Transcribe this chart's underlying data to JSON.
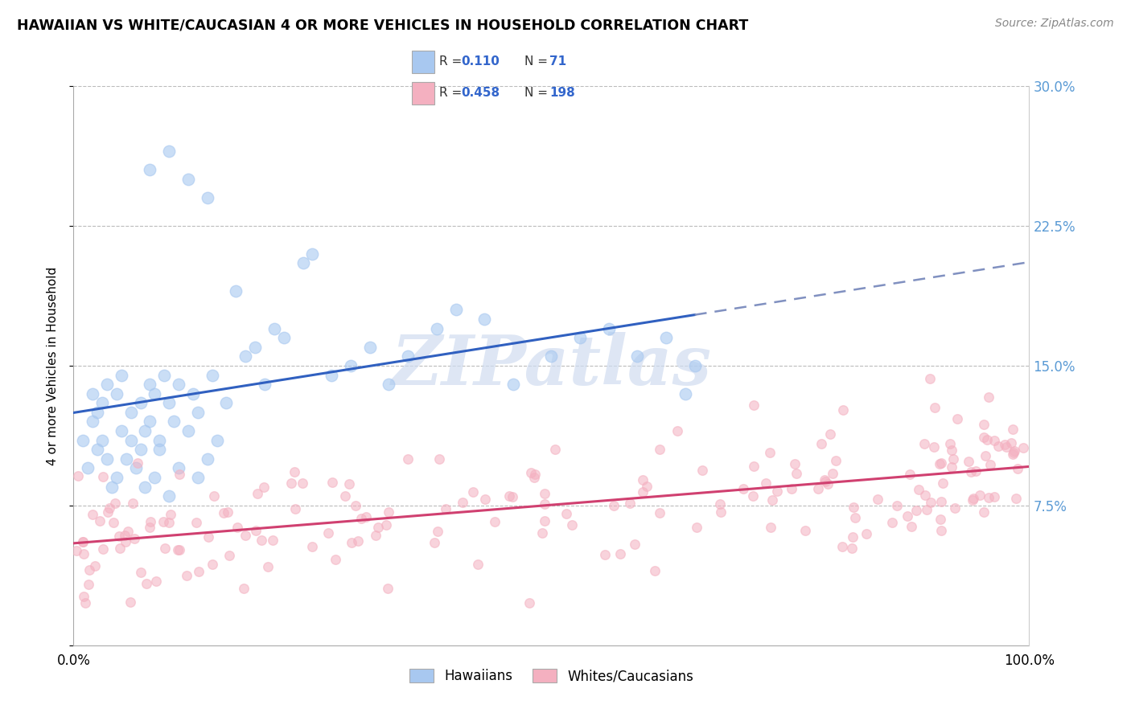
{
  "title": "HAWAIIAN VS WHITE/CAUCASIAN 4 OR MORE VEHICLES IN HOUSEHOLD CORRELATION CHART",
  "source": "Source: ZipAtlas.com",
  "ylabel": "4 or more Vehicles in Household",
  "xmin": 0.0,
  "xmax": 100.0,
  "ymin": 0.0,
  "ymax": 30.0,
  "hawaiian_color": "#A8C8F0",
  "white_color": "#F4B0C0",
  "hawaiian_line_color": "#3060C0",
  "white_line_color": "#D04070",
  "hawaiian_line_dash_color": "#8090C0",
  "R_hawaiian": 0.11,
  "N_hawaiian": 71,
  "R_white": 0.458,
  "N_white": 198,
  "legend_labels": [
    "Hawaiians",
    "Whites/Caucasians"
  ],
  "watermark": "ZIPatlas",
  "right_tick_color": "#5B9BD5",
  "hawaiian_x_max": 65.0
}
